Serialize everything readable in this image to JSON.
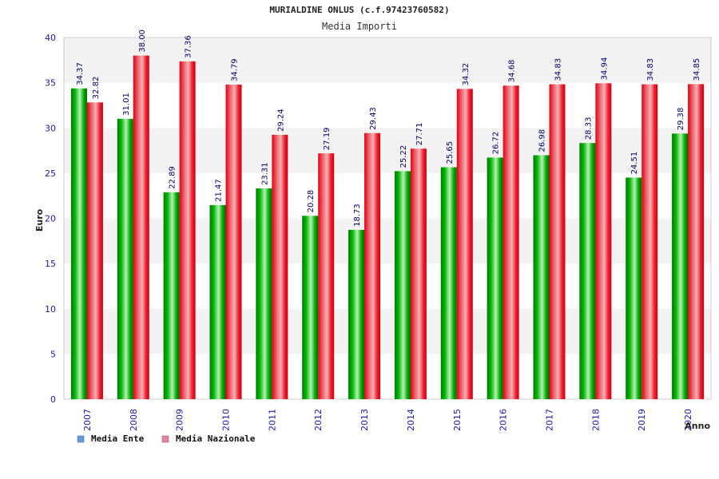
{
  "chart_data": {
    "type": "bar",
    "title": "MURIALDINE ONLUS (c.f.97423760582)",
    "subtitle": "Media Importi",
    "xlabel": "Anno",
    "ylabel": "Euro",
    "ylim": [
      0,
      40
    ],
    "yticks": [
      0,
      5,
      10,
      15,
      20,
      25,
      30,
      35,
      40
    ],
    "grid": true,
    "legend_position": "bottom-left",
    "categories": [
      "2007",
      "2008",
      "2009",
      "2010",
      "2011",
      "2012",
      "2013",
      "2014",
      "2015",
      "2016",
      "2017",
      "2018",
      "2019",
      "2020"
    ],
    "series": [
      {
        "name": "Media Ente",
        "legend_color": "#6699dd",
        "bar_color": "#00bb00",
        "values": [
          34.37,
          31.01,
          22.89,
          21.47,
          23.31,
          20.28,
          18.73,
          25.22,
          25.65,
          26.72,
          26.98,
          28.33,
          24.51,
          29.38
        ],
        "labels": [
          "34.37",
          "31.01",
          "22.89",
          "21.47",
          "23.31",
          "20.28",
          "18.73",
          "25.22",
          "25.65",
          "26.72",
          "26.98",
          "28.33",
          "24.51",
          "29.38"
        ]
      },
      {
        "name": "Media Nazionale",
        "legend_color": "#dd88aa",
        "bar_color": "#ee1122",
        "values": [
          32.82,
          38.0,
          37.36,
          34.79,
          29.24,
          27.19,
          29.43,
          27.71,
          34.32,
          34.68,
          34.83,
          34.94,
          34.83,
          34.85
        ],
        "labels": [
          "32.82",
          "38.00",
          "37.36",
          "34.79",
          "29.24",
          "27.19",
          "29.43",
          "27.71",
          "34.32",
          "34.68",
          "34.83",
          "34.94",
          "34.83",
          "34.85"
        ]
      }
    ]
  },
  "colors": {
    "axis_text": "#1a1aaa",
    "value_text": "#000066",
    "title_text": "#222222",
    "band_dark": "#f2f2f2",
    "band_light": "#ffffff",
    "frame": "#cccccc"
  }
}
